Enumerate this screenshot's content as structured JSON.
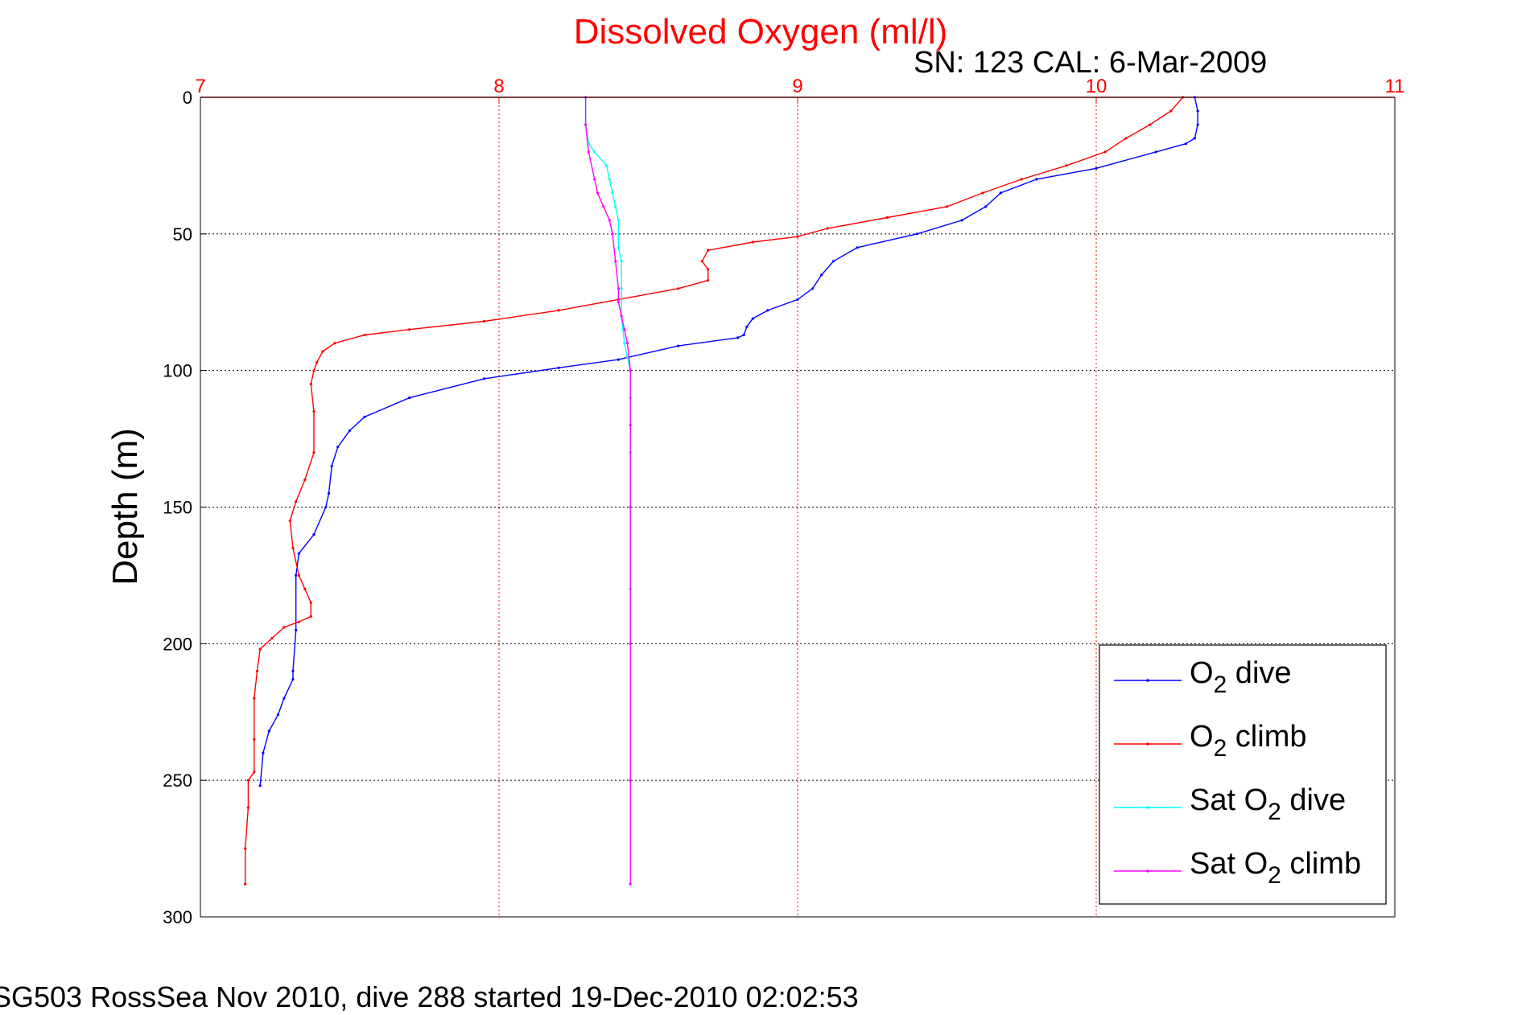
{
  "chart_data": {
    "type": "line",
    "title": "Dissolved Oxygen (ml/l)",
    "subtitle": "SN: 123  CAL: 6-Mar-2009",
    "xlabel": "",
    "ylabel": "Depth (m)",
    "footer": "SG503 RossSea Nov 2010, dive 288 started 19-Dec-2010 02:02:53",
    "xlim": [
      7,
      11
    ],
    "ylim": [
      0,
      300
    ],
    "y_reversed": true,
    "x_axis_position": "top",
    "x_ticks": [
      7,
      8,
      9,
      10,
      11
    ],
    "y_ticks": [
      0,
      50,
      100,
      150,
      200,
      250,
      300
    ],
    "grid": true,
    "legend_position": "bottom-right",
    "colors": {
      "title": "#ff0000",
      "x_ticks": "#ff0000",
      "grid": "#000000"
    },
    "series": [
      {
        "name": "O2 dive",
        "legend": {
          "pre": "O",
          "sub": "2",
          "post": " dive"
        },
        "color": "#0000ff",
        "points": [
          [
            10.33,
            0
          ],
          [
            10.34,
            5
          ],
          [
            10.34,
            10
          ],
          [
            10.33,
            15
          ],
          [
            10.3,
            17
          ],
          [
            10.2,
            20
          ],
          [
            10.0,
            26
          ],
          [
            9.8,
            30
          ],
          [
            9.68,
            35
          ],
          [
            9.63,
            40
          ],
          [
            9.55,
            45
          ],
          [
            9.4,
            50
          ],
          [
            9.2,
            55
          ],
          [
            9.12,
            60
          ],
          [
            9.08,
            65
          ],
          [
            9.05,
            70
          ],
          [
            9.0,
            74
          ],
          [
            8.9,
            78
          ],
          [
            8.85,
            81
          ],
          [
            8.83,
            84
          ],
          [
            8.82,
            87
          ],
          [
            8.8,
            88
          ],
          [
            8.6,
            91
          ],
          [
            8.4,
            96
          ],
          [
            8.2,
            99
          ],
          [
            7.95,
            103
          ],
          [
            7.7,
            110
          ],
          [
            7.55,
            117
          ],
          [
            7.5,
            122
          ],
          [
            7.46,
            128
          ],
          [
            7.44,
            135
          ],
          [
            7.43,
            145
          ],
          [
            7.42,
            150
          ],
          [
            7.38,
            160
          ],
          [
            7.33,
            167
          ],
          [
            7.32,
            175
          ],
          [
            7.32,
            195
          ],
          [
            7.31,
            210
          ],
          [
            7.31,
            213
          ],
          [
            7.28,
            220
          ],
          [
            7.26,
            226
          ],
          [
            7.23,
            232
          ],
          [
            7.21,
            240
          ],
          [
            7.2,
            252
          ]
        ]
      },
      {
        "name": "O2 climb",
        "legend": {
          "pre": "O",
          "sub": "2",
          "post": " climb"
        },
        "color": "#ff0000",
        "points": [
          [
            10.29,
            0
          ],
          [
            10.25,
            5
          ],
          [
            10.18,
            10
          ],
          [
            10.1,
            15
          ],
          [
            10.03,
            20
          ],
          [
            9.9,
            25
          ],
          [
            9.75,
            30
          ],
          [
            9.62,
            35
          ],
          [
            9.5,
            40
          ],
          [
            9.3,
            44
          ],
          [
            9.1,
            48
          ],
          [
            9.0,
            51
          ],
          [
            8.85,
            53
          ],
          [
            8.7,
            56
          ],
          [
            8.68,
            60
          ],
          [
            8.7,
            63
          ],
          [
            8.7,
            67
          ],
          [
            8.6,
            70
          ],
          [
            8.4,
            74
          ],
          [
            8.2,
            78
          ],
          [
            7.95,
            82
          ],
          [
            7.7,
            85
          ],
          [
            7.55,
            87
          ],
          [
            7.45,
            90
          ],
          [
            7.41,
            93
          ],
          [
            7.39,
            97
          ],
          [
            7.38,
            100
          ],
          [
            7.37,
            105
          ],
          [
            7.38,
            115
          ],
          [
            7.38,
            130
          ],
          [
            7.35,
            140
          ],
          [
            7.32,
            148
          ],
          [
            7.3,
            155
          ],
          [
            7.31,
            165
          ],
          [
            7.33,
            175
          ],
          [
            7.35,
            180
          ],
          [
            7.37,
            185
          ],
          [
            7.37,
            190
          ],
          [
            7.33,
            192
          ],
          [
            7.28,
            194
          ],
          [
            7.24,
            198
          ],
          [
            7.2,
            202
          ],
          [
            7.19,
            210
          ],
          [
            7.18,
            220
          ],
          [
            7.18,
            235
          ],
          [
            7.18,
            247
          ],
          [
            7.16,
            250
          ],
          [
            7.16,
            260
          ],
          [
            7.15,
            275
          ],
          [
            7.15,
            288
          ]
        ]
      },
      {
        "name": "Sat O2 dive",
        "legend": {
          "pre": "Sat O",
          "sub": "2",
          "post": " dive"
        },
        "color": "#00ffff",
        "points": [
          [
            8.29,
            0
          ],
          [
            8.29,
            10
          ],
          [
            8.3,
            17
          ],
          [
            8.32,
            20
          ],
          [
            8.36,
            25
          ],
          [
            8.37,
            30
          ],
          [
            8.38,
            35
          ],
          [
            8.39,
            40
          ],
          [
            8.4,
            45
          ],
          [
            8.4,
            55
          ],
          [
            8.41,
            60
          ],
          [
            8.41,
            70
          ],
          [
            8.41,
            80
          ],
          [
            8.42,
            90
          ],
          [
            8.43,
            95
          ],
          [
            8.44,
            100
          ],
          [
            8.44,
            110
          ],
          [
            8.44,
            130
          ],
          [
            8.44,
            150
          ],
          [
            8.44,
            180
          ],
          [
            8.44,
            200
          ]
        ]
      },
      {
        "name": "Sat O2 climb",
        "legend": {
          "pre": "Sat O",
          "sub": "2",
          "post": " climb"
        },
        "color": "#ff00ff",
        "points": [
          [
            8.29,
            0
          ],
          [
            8.29,
            10
          ],
          [
            8.3,
            20
          ],
          [
            8.32,
            30
          ],
          [
            8.33,
            35
          ],
          [
            8.35,
            40
          ],
          [
            8.37,
            45
          ],
          [
            8.38,
            50
          ],
          [
            8.39,
            60
          ],
          [
            8.4,
            70
          ],
          [
            8.4,
            75
          ],
          [
            8.41,
            80
          ],
          [
            8.42,
            85
          ],
          [
            8.43,
            90
          ],
          [
            8.44,
            100
          ],
          [
            8.44,
            120
          ],
          [
            8.44,
            150
          ],
          [
            8.44,
            200
          ],
          [
            8.44,
            250
          ],
          [
            8.44,
            288
          ]
        ]
      }
    ]
  }
}
